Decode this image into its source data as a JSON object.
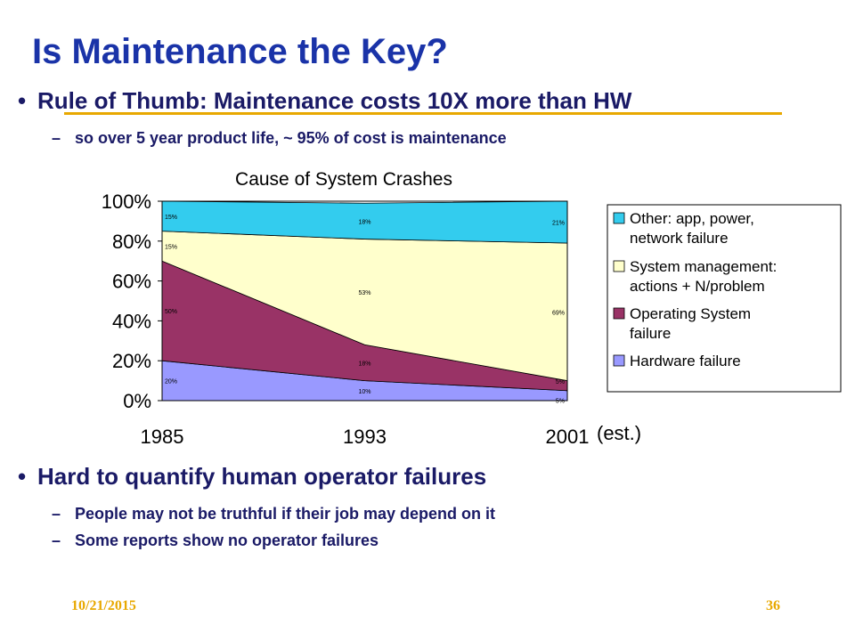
{
  "slide": {
    "title": "Is Maintenance the Key?",
    "bullets": [
      {
        "text": "Rule of Thumb: Maintenance costs 10X more than HW",
        "subs": [
          "so over 5 year product life, ~ 95% of cost is maintenance"
        ]
      },
      {
        "text": "Hard to quantify human operator failures",
        "subs": [
          "People may not be truthful if their job may depend on it",
          "Some reports show no operator failures"
        ]
      }
    ],
    "footer_date": "10/21/2015",
    "page_number": "36",
    "accent_color": "#e8a800",
    "title_color": "#1a33a8"
  },
  "chart_data": {
    "type": "area",
    "stacked": true,
    "title": "Cause of System Crashes",
    "categories": [
      "1985",
      "1993",
      "2001"
    ],
    "x_extra_label": "(est.)",
    "ylim": [
      0,
      100
    ],
    "yticks": [
      "0%",
      "20%",
      "40%",
      "60%",
      "80%",
      "100%"
    ],
    "legend_position": "right",
    "series": [
      {
        "name": "Hardware failure",
        "values": [
          20,
          10,
          5
        ],
        "labels": [
          "20%",
          "10%",
          "5%"
        ],
        "color": "#9999ff"
      },
      {
        "name": "Operating System failure",
        "values": [
          50,
          18,
          5
        ],
        "labels": [
          "50%",
          "18%",
          "5%"
        ],
        "color": "#993366"
      },
      {
        "name": "System management: actions + N/problem",
        "values": [
          15,
          53,
          69
        ],
        "labels": [
          "15%",
          "53%",
          "69%"
        ],
        "color": "#ffffcc"
      },
      {
        "name": "Other: app, power, network failure",
        "values": [
          15,
          18,
          21
        ],
        "labels": [
          "15%",
          "18%",
          "21%"
        ],
        "color": "#33ccee"
      }
    ],
    "legend": [
      {
        "lines": [
          "Other: app, power,",
          "network failure"
        ],
        "color": "#33ccee"
      },
      {
        "lines": [
          "System management:",
          "actions + N/problem"
        ],
        "color": "#ffffcc"
      },
      {
        "lines": [
          "Operating System",
          "failure"
        ],
        "color": "#993366"
      },
      {
        "lines": [
          "Hardware failure"
        ],
        "color": "#9999ff"
      }
    ]
  }
}
